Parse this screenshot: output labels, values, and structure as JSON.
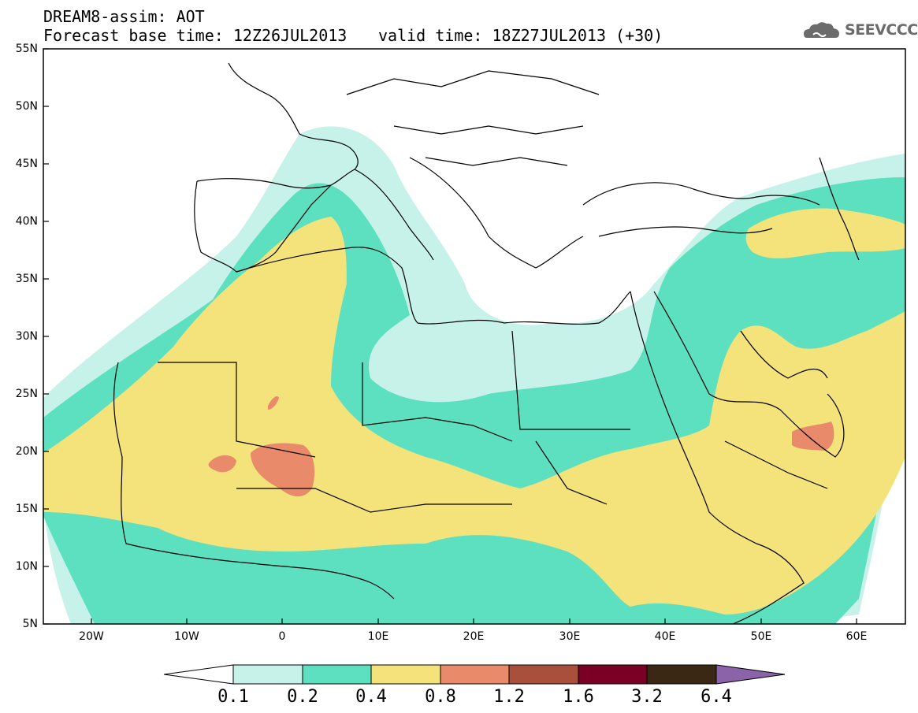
{
  "header": {
    "title": "DREAM8-assim: AOT",
    "base_time": "Forecast base time: 12Z26JUL2013",
    "valid_time": "valid time: 18Z27JUL2013 (+30)",
    "logo_text": "SEEVCCC"
  },
  "map": {
    "lat_labels": [
      "55N",
      "50N",
      "45N",
      "40N",
      "35N",
      "30N",
      "25N",
      "20N",
      "15N",
      "10N",
      "5N"
    ],
    "lon_labels": [
      "20W",
      "10W",
      "0",
      "10E",
      "20E",
      "30E",
      "40E",
      "50E",
      "60E"
    ],
    "lat_range": [
      5,
      55
    ],
    "lon_range": [
      -25,
      65
    ],
    "contour_colors": {
      "0.1-0.2": "#c6f2ea",
      "0.2-0.4": "#5de0c0",
      "0.4-0.8": "#f4e27a",
      "0.8-1.2": "#e98a6a"
    }
  },
  "colorbar": {
    "labels": [
      "0.1",
      "0.2",
      "0.4",
      "0.8",
      "1.2",
      "1.6",
      "3.2",
      "6.4"
    ],
    "colors": [
      "#ffffff",
      "#c6f2ea",
      "#5de0c0",
      "#f4e27a",
      "#e98a6a",
      "#a8503c",
      "#7a0026",
      "#3a2814",
      "#8a63a8"
    ]
  }
}
